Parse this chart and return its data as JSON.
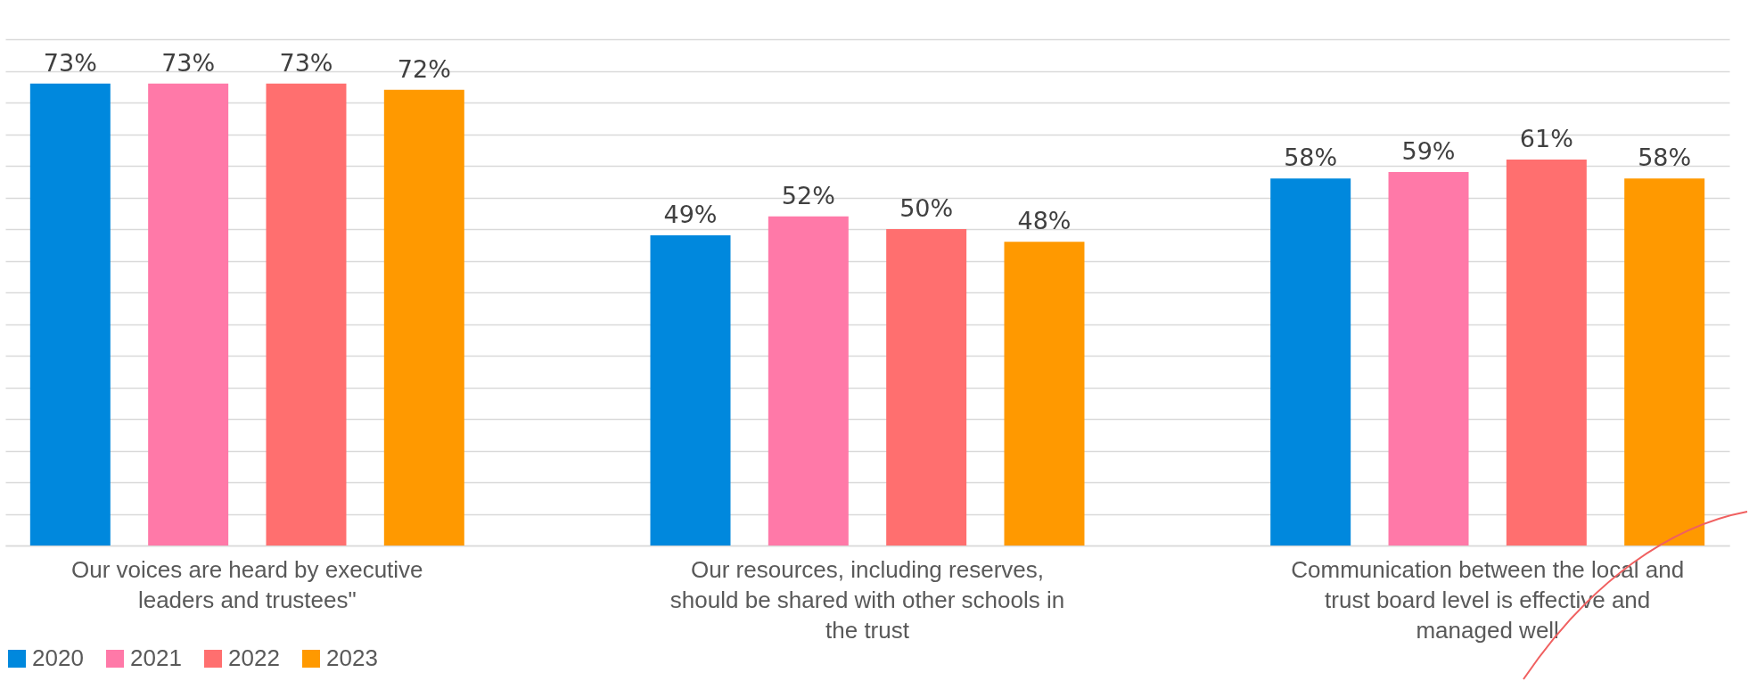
{
  "chart_data": {
    "type": "bar",
    "categories": [
      "Our voices are heard by executive leaders and trustees\"",
      "Our resources, including reserves, should be shared with other schools in the trust",
      "Communication between the local and trust board level is effective and managed well"
    ],
    "series": [
      {
        "name": "2020",
        "color": "#0088dd",
        "values": [
          73,
          49,
          58
        ],
        "value_labels": [
          "73%",
          "49%",
          "58%"
        ]
      },
      {
        "name": "2021",
        "color": "#ff79a8",
        "values": [
          73,
          52,
          59
        ],
        "value_labels": [
          "73%",
          "52%",
          "59%"
        ]
      },
      {
        "name": "2022",
        "color": "#ff6f6f",
        "values": [
          73,
          50,
          61
        ],
        "value_labels": [
          "73%",
          "50%",
          "61%"
        ]
      },
      {
        "name": "2023",
        "color": "#ff9900",
        "values": [
          72,
          48,
          58
        ],
        "value_labels": [
          "72%",
          "48%",
          "58%"
        ]
      }
    ],
    "tick_labels": "x",
    "grid": "y",
    "legend": "bottom"
  }
}
